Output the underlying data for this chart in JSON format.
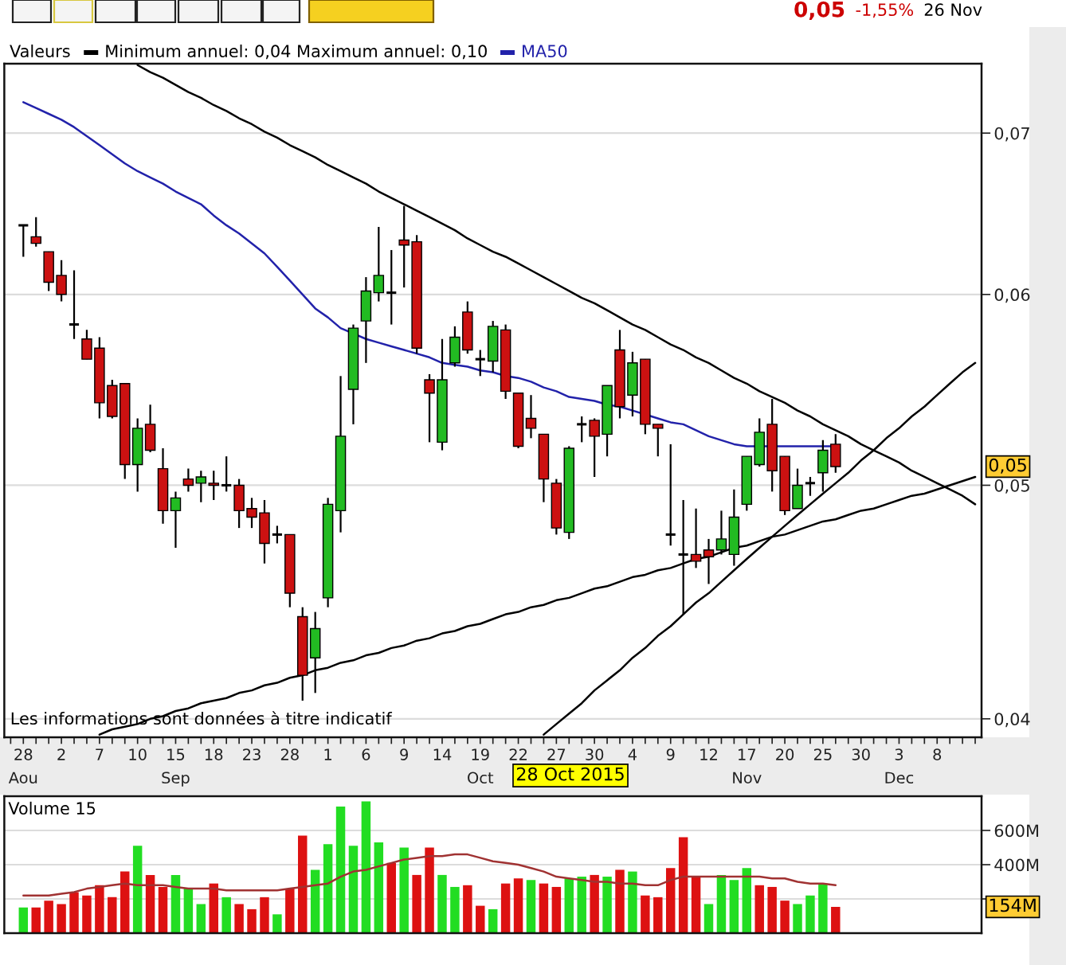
{
  "chart_data": [
    {
      "type": "candlestick",
      "legend_title": "Valeurs",
      "subtitle": "Minimum annuel: 0,04 Maximum annuel: 0,10",
      "legend": "top left",
      "log": "y",
      "categories": [
        null,
        "28\nAou",
        null,
        null,
        "2",
        null,
        null,
        "7",
        null,
        null,
        "10",
        null,
        null,
        "15\nSep",
        null,
        null,
        "18",
        null,
        null,
        "23",
        null,
        null,
        "28",
        null,
        null,
        "1",
        null,
        null,
        "6",
        null,
        null,
        "9",
        null,
        null,
        "14",
        null,
        null,
        "19\nOct",
        null,
        null,
        "22",
        null,
        null,
        "27",
        null,
        null,
        "30",
        null,
        null,
        "4",
        null,
        null,
        "9",
        null,
        null,
        "12",
        null,
        null,
        "17\nNov",
        null,
        null,
        "20",
        null,
        null,
        "25",
        null,
        null,
        "30",
        null,
        null,
        "3\nDec",
        null,
        null,
        "8",
        null,
        null,
        null
      ],
      "ylim": [
        0.0393,
        0.0748
      ],
      "yticks": [
        {
          "value": 0.04,
          "label": "0,04"
        },
        {
          "value": 0.05,
          "label": "0,05"
        },
        {
          "value": 0.06,
          "label": "0,06"
        },
        {
          "value": 0.07,
          "label": "0,07"
        }
      ],
      "grid": "y",
      "annotations": [
        "0,05",
        "-1,55%",
        "26 Nov",
        "Les informations sont données à titre indicatif",
        "28 Oct 2015",
        {
          "text": "0,05",
          "y": 0.0509
        }
      ],
      "series": [
        {
          "type": "candlestick",
          "color": "#000000",
          "ohlc": [
            null,
            [
              0.0641,
              0.0641,
              0.0622,
              0.0641
            ],
            [
              0.0634,
              0.0646,
              0.0628,
              0.063
            ],
            [
              0.0625,
              0.0625,
              0.0602,
              0.0607
            ],
            [
              0.0611,
              0.062,
              0.0596,
              0.06
            ],
            [
              0.0583,
              0.0614,
              0.0575,
              0.0583
            ],
            [
              0.0575,
              0.058,
              0.0564,
              0.0564
            ],
            [
              0.057,
              0.0576,
              0.0533,
              0.0541
            ],
            [
              0.055,
              0.0553,
              0.0533,
              0.0534
            ],
            [
              0.0551,
              0.0551,
              0.0503,
              0.051
            ],
            [
              0.051,
              0.0533,
              0.0497,
              0.0528
            ],
            [
              0.053,
              0.054,
              0.0516,
              0.0517
            ],
            [
              0.0508,
              0.0518,
              0.0482,
              0.0488
            ],
            [
              0.0488,
              0.0497,
              0.0471,
              0.0494
            ],
            [
              0.0503,
              0.0508,
              0.0497,
              0.05
            ],
            [
              0.0501,
              0.0507,
              0.0492,
              0.0504
            ],
            [
              0.0501,
              0.0507,
              0.0493,
              0.05
            ],
            [
              0.05,
              0.0514,
              0.0497,
              0.05
            ],
            [
              0.05,
              0.0503,
              0.048,
              0.0488
            ],
            [
              0.0489,
              0.0494,
              0.048,
              0.0485
            ],
            [
              0.0487,
              0.0493,
              0.0464,
              0.0473
            ],
            [
              0.0477,
              0.0481,
              0.0473,
              0.0477
            ],
            [
              0.0477,
              0.0477,
              0.0445,
              0.0451
            ],
            [
              0.0441,
              0.0445,
              0.0407,
              0.0417
            ],
            [
              0.0424,
              0.0443,
              0.041,
              0.0436
            ],
            [
              0.0449,
              0.0494,
              0.0445,
              0.0491
            ],
            [
              0.0488,
              0.0555,
              0.0478,
              0.0524
            ],
            [
              0.0548,
              0.0583,
              0.053,
              0.0581
            ],
            [
              0.0585,
              0.061,
              0.0562,
              0.0602
            ],
            [
              0.0601,
              0.064,
              0.0596,
              0.0611
            ],
            [
              0.0601,
              0.0626,
              0.0583,
              0.0601
            ],
            [
              0.0632,
              0.0653,
              0.0604,
              0.0629
            ],
            [
              0.0631,
              0.0635,
              0.0567,
              0.057
            ],
            [
              0.0553,
              0.0556,
              0.0521,
              0.0546
            ],
            [
              0.0521,
              0.0575,
              0.0517,
              0.0553
            ],
            [
              0.0562,
              0.0582,
              0.056,
              0.0576
            ],
            [
              0.059,
              0.0596,
              0.0567,
              0.0569
            ],
            [
              0.0564,
              0.0569,
              0.0555,
              0.0564
            ],
            [
              0.0563,
              0.0585,
              0.0557,
              0.0582
            ],
            [
              0.058,
              0.0583,
              0.0543,
              0.0547
            ],
            [
              0.0546,
              0.0546,
              0.0518,
              0.0519
            ],
            [
              0.0533,
              0.0545,
              0.0523,
              0.0528
            ],
            [
              0.0525,
              0.0525,
              0.0492,
              0.0503
            ],
            [
              0.0501,
              0.0503,
              0.0477,
              0.048
            ],
            [
              0.0478,
              0.0519,
              0.0475,
              0.0518
            ],
            [
              0.053,
              0.0534,
              0.0521,
              0.053
            ],
            [
              0.0532,
              0.0533,
              0.0504,
              0.0524
            ],
            [
              0.0525,
              0.055,
              0.0514,
              0.055
            ],
            [
              0.0569,
              0.058,
              0.0533,
              0.0539
            ],
            [
              0.0545,
              0.0568,
              0.0534,
              0.0562
            ],
            [
              0.0564,
              0.0564,
              0.0525,
              0.053
            ],
            [
              0.053,
              0.053,
              0.0514,
              0.0528
            ],
            [
              0.0477,
              0.052,
              0.0472,
              0.0477
            ],
            [
              0.0468,
              0.0493,
              0.0442,
              0.0468
            ],
            [
              0.0468,
              0.0489,
              0.0462,
              0.0465
            ],
            [
              0.047,
              0.0475,
              0.0455,
              0.0467
            ],
            [
              0.047,
              0.0488,
              0.0468,
              0.0475
            ],
            [
              0.0468,
              0.0498,
              0.0463,
              0.0485
            ],
            [
              0.0491,
              0.0514,
              0.0488,
              0.0514
            ],
            [
              0.051,
              0.0533,
              0.0509,
              0.0526
            ],
            [
              0.053,
              0.0543,
              0.0497,
              0.0507
            ],
            [
              0.0514,
              0.0514,
              0.0486,
              0.0488
            ],
            [
              0.0489,
              0.0508,
              0.0489,
              0.05
            ],
            [
              0.0501,
              0.0504,
              0.0495,
              0.0501
            ],
            [
              0.0506,
              0.0522,
              0.0497,
              0.0517
            ],
            [
              0.052,
              0.0525,
              0.0506,
              0.0509
            ],
            null,
            null,
            null,
            null,
            null,
            null,
            null,
            null,
            null,
            null,
            null
          ],
          "colors": [
            null,
            "#000000",
            "#cc1111",
            "#cc1111",
            "#cc1111",
            "#000000",
            "#cc1111",
            "#cc1111",
            "#cc1111",
            "#cc1111",
            "#22bb22",
            "#cc1111",
            "#cc1111",
            "#22bb22",
            "#cc1111",
            "#22bb22",
            "#cc1111",
            "#000000",
            "#cc1111",
            "#cc1111",
            "#cc1111",
            "#000000",
            "#cc1111",
            "#cc1111",
            "#22bb22",
            "#22bb22",
            "#22bb22",
            "#22bb22",
            "#22bb22",
            "#22bb22",
            "#000000",
            "#cc1111",
            "#cc1111",
            "#cc1111",
            "#22bb22",
            "#22bb22",
            "#cc1111",
            "#000000",
            "#22bb22",
            "#cc1111",
            "#cc1111",
            "#cc1111",
            "#cc1111",
            "#cc1111",
            "#22bb22",
            "#000000",
            "#cc1111",
            "#22bb22",
            "#cc1111",
            "#22bb22",
            "#cc1111",
            "#cc1111",
            "#000000",
            "#000000",
            "#cc1111",
            "#cc1111",
            "#22bb22",
            "#22bb22",
            "#22bb22",
            "#22bb22",
            "#cc1111",
            "#cc1111",
            "#22bb22",
            "#000000",
            "#22bb22",
            "#cc1111",
            null,
            null,
            null,
            null,
            null,
            null,
            null,
            null,
            null,
            null,
            null
          ]
        },
        {
          "type": "line",
          "name": "MA50",
          "color": "#2222aa",
          "values": [
            null,
            0.0721,
            0.0717,
            0.0713,
            0.0709,
            0.0704,
            0.0698,
            0.0692,
            0.0686,
            0.068,
            0.0675,
            0.0671,
            0.0667,
            0.0662,
            0.0658,
            0.0654,
            0.0647,
            0.0641,
            0.0636,
            0.063,
            0.0624,
            0.0616,
            0.0608,
            0.06,
            0.0592,
            0.0587,
            0.0581,
            0.0578,
            0.0575,
            0.0573,
            0.0571,
            0.0569,
            0.0567,
            0.0565,
            0.0562,
            0.0561,
            0.056,
            0.0558,
            0.0557,
            0.0555,
            0.0554,
            0.0552,
            0.0549,
            0.0547,
            0.0544,
            0.0543,
            0.0542,
            0.054,
            0.0539,
            0.0537,
            0.0535,
            0.0533,
            0.0531,
            0.053,
            0.0527,
            0.0524,
            0.0522,
            0.052,
            0.0519,
            0.0519,
            0.0519,
            0.0519,
            0.0519,
            0.0519,
            0.0519,
            0.0519,
            null,
            null,
            null,
            null,
            null,
            null,
            null,
            null,
            null,
            null,
            null
          ]
        },
        {
          "type": "line",
          "color": "#000000",
          "values": [
            null,
            null,
            null,
            null,
            null,
            null,
            null,
            null,
            null,
            null,
            0.0747,
            0.0742,
            0.0738,
            0.0733,
            0.0728,
            0.0724,
            0.0719,
            0.0715,
            0.071,
            0.0706,
            0.0701,
            0.0697,
            0.0692,
            0.0688,
            0.0684,
            0.0679,
            0.0675,
            0.0671,
            0.0667,
            0.0662,
            0.0658,
            0.0654,
            0.065,
            0.0646,
            0.0642,
            0.0638,
            0.0633,
            0.0629,
            0.0625,
            0.0622,
            0.0618,
            0.0614,
            0.061,
            0.0606,
            0.0602,
            0.0598,
            0.0595,
            0.0591,
            0.0587,
            0.0583,
            0.058,
            0.0576,
            0.0572,
            0.0569,
            0.0565,
            0.0562,
            0.0558,
            0.0554,
            0.0551,
            0.0547,
            0.0544,
            0.0541,
            0.0537,
            0.0534,
            0.053,
            0.0527,
            0.0524,
            0.052,
            0.0517,
            0.0514,
            0.0511,
            0.0507,
            0.0504,
            0.0501,
            0.0498,
            0.0495,
            0.0491
          ]
        },
        {
          "type": "line",
          "color": "#000000",
          "values": [
            null,
            null,
            null,
            null,
            null,
            null,
            null,
            0.0394,
            0.0396,
            0.0397,
            0.0398,
            0.04,
            0.0401,
            0.0403,
            0.0404,
            0.0406,
            0.0407,
            0.0408,
            0.041,
            0.0411,
            0.0413,
            0.0414,
            0.0416,
            0.0417,
            0.0419,
            0.042,
            0.0422,
            0.0423,
            0.0425,
            0.0426,
            0.0428,
            0.0429,
            0.0431,
            0.0432,
            0.0434,
            0.0435,
            0.0437,
            0.0438,
            0.044,
            0.0442,
            0.0443,
            0.0445,
            0.0446,
            0.0448,
            0.0449,
            0.0451,
            0.0453,
            0.0454,
            0.0456,
            0.0458,
            0.0459,
            0.0461,
            0.0462,
            0.0464,
            0.0466,
            0.0467,
            0.0469,
            0.0471,
            0.0472,
            0.0474,
            0.0476,
            0.0477,
            0.0479,
            0.0481,
            0.0483,
            0.0484,
            0.0486,
            0.0488,
            0.0489,
            0.0491,
            0.0493,
            0.0495,
            0.0496,
            0.0498,
            0.05,
            0.0502,
            0.0504
          ]
        },
        {
          "type": "line",
          "color": "#000000",
          "values": [
            null,
            null,
            null,
            null,
            null,
            null,
            null,
            null,
            null,
            null,
            null,
            null,
            null,
            null,
            null,
            null,
            null,
            null,
            null,
            null,
            null,
            null,
            null,
            null,
            null,
            null,
            null,
            null,
            null,
            null,
            null,
            null,
            null,
            null,
            null,
            null,
            null,
            null,
            null,
            null,
            null,
            null,
            0.0394,
            0.0398,
            0.0402,
            0.0406,
            0.0411,
            0.0415,
            0.0419,
            0.0424,
            0.0428,
            0.0433,
            0.0437,
            0.0442,
            0.0447,
            0.0451,
            0.0456,
            0.0461,
            0.0466,
            0.0471,
            0.0476,
            0.0481,
            0.0486,
            0.0491,
            0.0496,
            0.0501,
            0.0506,
            0.0512,
            0.0517,
            0.0523,
            0.0528,
            0.0534,
            0.0539,
            0.0545,
            0.0551,
            0.0557,
            0.0562
          ]
        }
      ]
    },
    {
      "type": "bar",
      "title": "Volume 15",
      "categories": [
        null,
        null,
        null,
        null,
        null,
        null,
        null,
        null,
        null,
        null,
        null,
        null,
        null,
        null,
        null,
        null,
        null,
        null,
        null,
        null,
        null,
        null,
        null,
        null,
        null,
        null,
        null,
        null,
        null,
        null,
        null,
        null,
        null,
        null,
        null,
        null,
        null,
        null,
        null,
        null,
        null,
        null,
        null,
        null,
        null,
        null,
        null,
        null,
        null,
        null,
        null,
        null,
        null,
        null,
        null,
        null,
        null,
        null,
        null,
        null,
        null,
        null,
        null,
        null,
        null,
        null,
        null,
        null,
        null,
        null,
        null,
        null,
        null,
        null,
        null,
        null,
        null
      ],
      "ylim": [
        0,
        800
      ],
      "yticks": [
        {
          "value": 200,
          "label": null
        },
        {
          "value": 400,
          "label": "400M"
        },
        {
          "value": 600,
          "label": "600M"
        }
      ],
      "tick_labels": "y",
      "grid": "y",
      "annotations": [
        {
          "text": "154M",
          "y": 154
        }
      ],
      "series": [
        {
          "type": "bar",
          "values": [
            null,
            150,
            150,
            190,
            170,
            240,
            220,
            280,
            210,
            360,
            510,
            340,
            270,
            340,
            260,
            170,
            290,
            210,
            170,
            140,
            210,
            110,
            260,
            570,
            370,
            520,
            740,
            510,
            770,
            530,
            410,
            500,
            340,
            500,
            340,
            270,
            280,
            160,
            140,
            290,
            320,
            310,
            290,
            270,
            320,
            330,
            340,
            330,
            370,
            360,
            220,
            210,
            380,
            560,
            330,
            170,
            340,
            310,
            380,
            280,
            270,
            190,
            170,
            220,
            290,
            154,
            null,
            null,
            null,
            null,
            null,
            null,
            null,
            null,
            null,
            null,
            null
          ],
          "colors": [
            null,
            "#22dd22",
            "#dd1111",
            "#dd1111",
            "#dd1111",
            "#dd1111",
            "#dd1111",
            "#dd1111",
            "#dd1111",
            "#dd1111",
            "#22dd22",
            "#dd1111",
            "#dd1111",
            "#22dd22",
            "#22dd22",
            "#22dd22",
            "#dd1111",
            "#22dd22",
            "#dd1111",
            "#dd1111",
            "#dd1111",
            "#22dd22",
            "#dd1111",
            "#dd1111",
            "#22dd22",
            "#22dd22",
            "#22dd22",
            "#22dd22",
            "#22dd22",
            "#22dd22",
            "#dd1111",
            "#22dd22",
            "#dd1111",
            "#dd1111",
            "#22dd22",
            "#22dd22",
            "#dd1111",
            "#dd1111",
            "#22dd22",
            "#dd1111",
            "#dd1111",
            "#22dd22",
            "#dd1111",
            "#dd1111",
            "#22dd22",
            "#22dd22",
            "#dd1111",
            "#22dd22",
            "#dd1111",
            "#22dd22",
            "#dd1111",
            "#dd1111",
            "#dd1111",
            "#dd1111",
            "#dd1111",
            "#22dd22",
            "#22dd22",
            "#22dd22",
            "#22dd22",
            "#dd1111",
            "#dd1111",
            "#dd1111",
            "#22dd22",
            "#22dd22",
            "#22dd22",
            "#dd1111",
            null,
            null,
            null,
            null,
            null,
            null,
            null,
            null,
            null,
            null,
            null
          ]
        },
        {
          "type": "line",
          "color": "#a03232",
          "values": [
            null,
            220,
            220,
            220,
            230,
            240,
            260,
            270,
            280,
            290,
            280,
            280,
            280,
            270,
            260,
            260,
            260,
            250,
            250,
            250,
            250,
            250,
            260,
            270,
            280,
            290,
            330,
            360,
            370,
            390,
            410,
            430,
            440,
            450,
            450,
            460,
            460,
            440,
            420,
            410,
            400,
            380,
            360,
            330,
            320,
            310,
            300,
            300,
            290,
            290,
            280,
            280,
            310,
            330,
            330,
            330,
            330,
            330,
            330,
            330,
            320,
            320,
            300,
            290,
            290,
            280,
            null,
            null,
            null,
            null,
            null,
            null,
            null,
            null,
            null,
            null,
            null
          ]
        }
      ]
    }
  ]
}
